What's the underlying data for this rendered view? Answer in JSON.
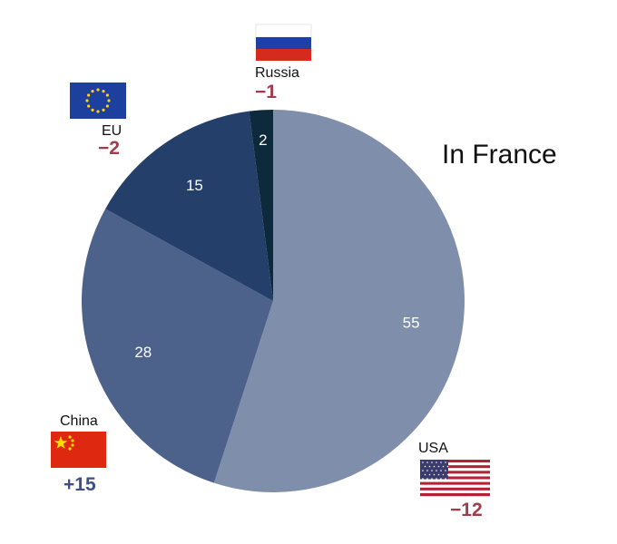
{
  "chart_data": {
    "type": "pie",
    "title": "In France",
    "categories": [
      "USA",
      "China",
      "EU",
      "Russia"
    ],
    "values": [
      55,
      28,
      15,
      2
    ],
    "slice_labels": [
      "55",
      "28",
      "15",
      "2"
    ],
    "changes": [
      "−12",
      "+15",
      "−2",
      "−1"
    ],
    "colors": [
      "#7f8fab",
      "#4d628a",
      "#253f6b",
      "#0d2a3d"
    ],
    "change_colors": {
      "negative": "#a23c4c",
      "positive": "#3d5085"
    },
    "flag_icons": [
      "usa-flag-icon",
      "china-flag-icon",
      "eu-flag-icon",
      "russia-flag-icon"
    ]
  }
}
